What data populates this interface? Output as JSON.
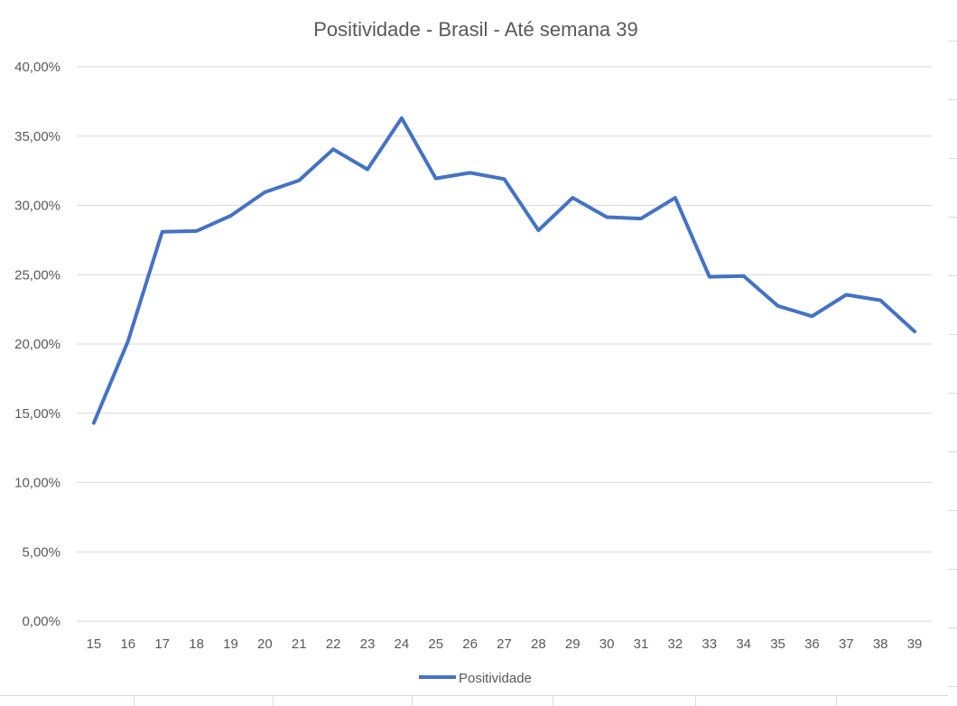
{
  "chart_data": {
    "type": "line",
    "title": "Positividade - Brasil - Até semana 39",
    "xlabel": "",
    "ylabel": "",
    "categories": [
      "15",
      "16",
      "17",
      "18",
      "19",
      "20",
      "21",
      "22",
      "23",
      "24",
      "25",
      "26",
      "27",
      "28",
      "29",
      "30",
      "31",
      "32",
      "33",
      "34",
      "35",
      "36",
      "37",
      "38",
      "39"
    ],
    "series": [
      {
        "name": "Positividade",
        "color": "#4472c4",
        "values": [
          14.3,
          20.2,
          28.1,
          28.15,
          29.25,
          30.95,
          31.8,
          34.05,
          32.6,
          36.3,
          31.95,
          32.35,
          31.9,
          28.2,
          30.55,
          29.15,
          29.05,
          30.55,
          24.85,
          24.9,
          22.75,
          22.0,
          23.55,
          23.15,
          20.9
        ]
      }
    ],
    "ylim": [
      0,
      40
    ],
    "yticks": [
      0,
      5,
      10,
      15,
      20,
      25,
      30,
      35,
      40
    ],
    "ytick_labels": [
      "0,00%",
      "5,00%",
      "10,00%",
      "15,00%",
      "20,00%",
      "25,00%",
      "30,00%",
      "35,00%",
      "40,00%"
    ],
    "grid": true,
    "legend_position": "bottom",
    "gridline_color": "#d9d9d9",
    "text_color": "#595959"
  }
}
